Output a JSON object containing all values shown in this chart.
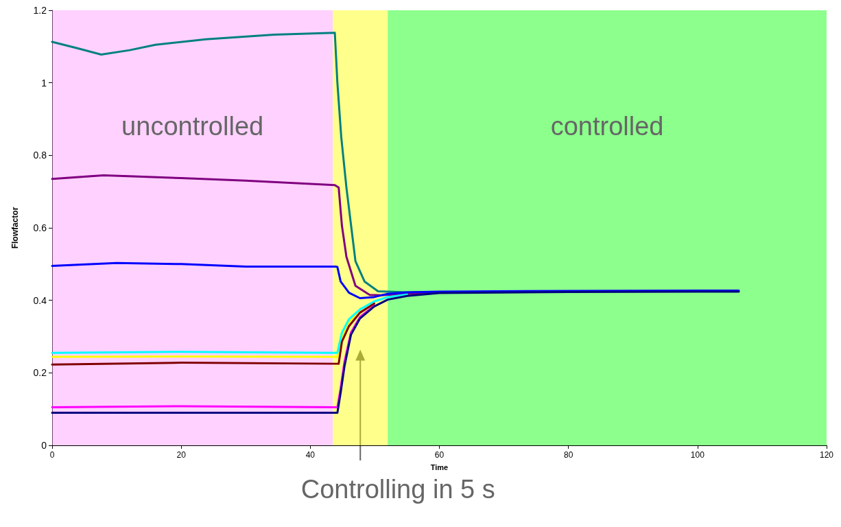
{
  "chart_data": {
    "type": "line",
    "xlabel": "Time",
    "ylabel": "Flowfactor",
    "xlim": [
      0,
      120
    ],
    "ylim": [
      0,
      1.2
    ],
    "xticks": [
      0,
      20,
      40,
      60,
      80,
      100,
      120
    ],
    "yticks": [
      0,
      0.2,
      0.4,
      0.6,
      0.8,
      1,
      1.2
    ],
    "grid": false,
    "marker": "none",
    "line_style": "solid",
    "bands": [
      {
        "axis": "x",
        "from": 0,
        "to": 43.5,
        "label": "uncontrolled",
        "color": "#ff99ff"
      },
      {
        "axis": "x",
        "from": 43.5,
        "to": 52,
        "color": "#ffff00"
      },
      {
        "axis": "x",
        "from": 52,
        "to": 120,
        "label": "controlled",
        "color": "#00ff00"
      }
    ],
    "annotations": [
      "Controlling in 5 s"
    ],
    "series": [
      {
        "color": "#008080",
        "x": [
          0,
          4,
          7.6,
          12,
          16,
          23.8,
          34.4,
          43.8,
          44.2,
          44.8,
          45.6,
          47,
          48.4,
          50.5,
          55,
          60
        ],
        "values": [
          1.113,
          1.095,
          1.078,
          1.09,
          1.105,
          1.12,
          1.133,
          1.138,
          1.0,
          0.85,
          0.711,
          0.508,
          0.452,
          0.425,
          0.422,
          0.423
        ]
      },
      {
        "color": "#800080",
        "x": [
          0,
          8,
          20,
          30,
          43.8,
          44.4,
          44.9,
          45.6,
          47,
          49.2,
          50.9,
          55,
          60
        ],
        "values": [
          0.735,
          0.745,
          0.737,
          0.73,
          0.718,
          0.711,
          0.606,
          0.52,
          0.44,
          0.415,
          0.414,
          0.418,
          0.422
        ]
      },
      {
        "color": "#0000ff",
        "x": [
          0,
          10,
          20,
          30,
          43.9,
          44.2,
          44.7,
          46,
          47.7,
          49.9,
          52,
          55,
          60,
          80,
          106.4
        ],
        "values": [
          0.495,
          0.503,
          0.5,
          0.493,
          0.493,
          0.492,
          0.452,
          0.421,
          0.406,
          0.409,
          0.418,
          0.422,
          0.424,
          0.426,
          0.427
        ]
      },
      {
        "color": "#ffff00",
        "x": [
          0,
          20,
          44.2,
          44.9,
          46,
          47.7
        ],
        "values": [
          0.244,
          0.245,
          0.244,
          0.3,
          0.34,
          0.37
        ]
      },
      {
        "color": "#00ffff",
        "x": [
          0,
          20,
          44.2,
          44.9,
          46,
          47.7,
          49.9,
          52,
          55
        ],
        "values": [
          0.255,
          0.258,
          0.255,
          0.311,
          0.348,
          0.375,
          0.397,
          0.409,
          0.416
        ]
      },
      {
        "color": "#800000",
        "x": [
          0,
          20,
          44.4,
          44.9,
          46,
          47.7,
          49.9
        ],
        "values": [
          0.223,
          0.228,
          0.225,
          0.286,
          0.329,
          0.366,
          0.391
        ]
      },
      {
        "color": "#ff00ff",
        "x": [
          0,
          20,
          44.2,
          44.7,
          45.3,
          46.3,
          47.7,
          49.9
        ],
        "values": [
          0.105,
          0.108,
          0.105,
          0.157,
          0.231,
          0.311,
          0.354,
          0.385
        ]
      },
      {
        "color": "#000080",
        "x": [
          0,
          20,
          44.2,
          44.7,
          45.3,
          46.3,
          47.7,
          49.9,
          52,
          55,
          60,
          80,
          106.4
        ],
        "values": [
          0.09,
          0.09,
          0.09,
          0.145,
          0.218,
          0.305,
          0.35,
          0.383,
          0.402,
          0.412,
          0.42,
          0.423,
          0.424
        ]
      }
    ]
  }
}
